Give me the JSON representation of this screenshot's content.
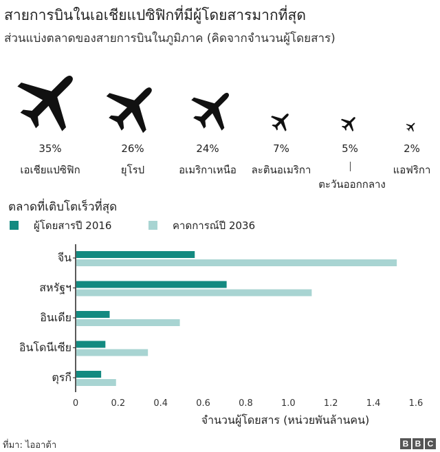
{
  "title": "สายการบินในเอเชียแปซิฟิกที่มีผู้โดยสารมากที่สุด",
  "subtitle": "ส่วนแบ่งตลาดของสายการบินในภูมิภาค (คิดจากจำนวนผู้โดยสาร)",
  "market_share": [
    {
      "region": "เอเชียแปซิฟิก",
      "share": "35%"
    },
    {
      "region": "ยุโรป",
      "share": "26%"
    },
    {
      "region": "อเมริกาเหนือ",
      "share": "24%"
    },
    {
      "region": "ละตินอเมริกา",
      "share": "7%"
    },
    {
      "region": "ตะวันออกกลาง",
      "share": "5%"
    },
    {
      "region": "แอฟริกา",
      "share": "2%"
    }
  ],
  "plane_icon": "airplane-icon",
  "legend_title": "ตลาดที่เติบโตเร็วที่สุด",
  "colors": {
    "series_2016": "#138a80",
    "series_2036": "#a8d4d2",
    "axis": "#222222",
    "grid": "#dddddd"
  },
  "chart_data": {
    "type": "bar",
    "orientation": "horizontal",
    "categories": [
      "จีน",
      "สหรัฐฯ",
      "อินเดีย",
      "อินโดนีเซีย",
      "ตุรกี"
    ],
    "series": [
      {
        "name": "ผู้โดยสารปี 2016",
        "values": [
          0.56,
          0.71,
          0.16,
          0.14,
          0.12
        ]
      },
      {
        "name": "คาดการณ์ปี 2036",
        "values": [
          1.51,
          1.11,
          0.49,
          0.34,
          0.19
        ]
      }
    ],
    "xlabel": "จำนวนผู้โดยสาร (หน่วยพันล้านคน)",
    "ylabel": "",
    "xlim": [
      0,
      1.6
    ],
    "xticks": [
      "0",
      "0.2",
      "0.4",
      "0.6",
      "0.8",
      "1.0",
      "1.2",
      "1.4",
      "1.6"
    ],
    "grid": false,
    "legend_position": "top-left"
  },
  "source": "ที่มา: ไออาต้า",
  "logo": "BBC"
}
